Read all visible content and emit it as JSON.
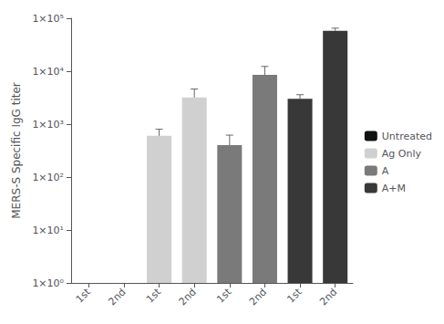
{
  "chart_data": {
    "type": "bar",
    "categories": [
      "1st",
      "2nd",
      "1st",
      "2nd",
      "1st",
      "2nd",
      "1st",
      "2nd"
    ],
    "series": [
      {
        "name": "Untreated",
        "color": "#111111",
        "values": [
          1.0,
          1.0,
          null,
          null,
          null,
          null,
          null,
          null
        ],
        "errors": [
          0,
          0,
          null,
          null,
          null,
          null,
          null,
          null
        ]
      },
      {
        "name": "Ag Only",
        "color": "#d0d0d0",
        "values": [
          null,
          null,
          600,
          3200,
          null,
          null,
          null,
          null
        ],
        "errors": [
          null,
          null,
          200,
          1400,
          null,
          null,
          null,
          null
        ]
      },
      {
        "name": "A",
        "color": "#7a7a7a",
        "values": [
          null,
          null,
          null,
          null,
          400,
          8500,
          null,
          null
        ],
        "errors": [
          null,
          null,
          null,
          null,
          220,
          3800,
          null,
          null
        ]
      },
      {
        "name": "A+M",
        "color": "#383838",
        "values": [
          null,
          null,
          null,
          null,
          null,
          null,
          3000,
          58000
        ],
        "errors": [
          null,
          null,
          null,
          null,
          null,
          null,
          600,
          7000
        ]
      }
    ],
    "ylabel": "MERS-S Specific IgG titer",
    "ylim": [
      1.0,
      100000.0
    ],
    "yticks": [
      {
        "value": 1,
        "label": "1×10⁰"
      },
      {
        "value": 10,
        "label": "1×10¹"
      },
      {
        "value": 100,
        "label": "1×10²"
      },
      {
        "value": 1000,
        "label": "1×10³"
      },
      {
        "value": 10000,
        "label": "1×10⁴"
      },
      {
        "value": 100000,
        "label": "1×10⁵"
      }
    ],
    "log": "y",
    "grid": false,
    "legend": "right"
  }
}
